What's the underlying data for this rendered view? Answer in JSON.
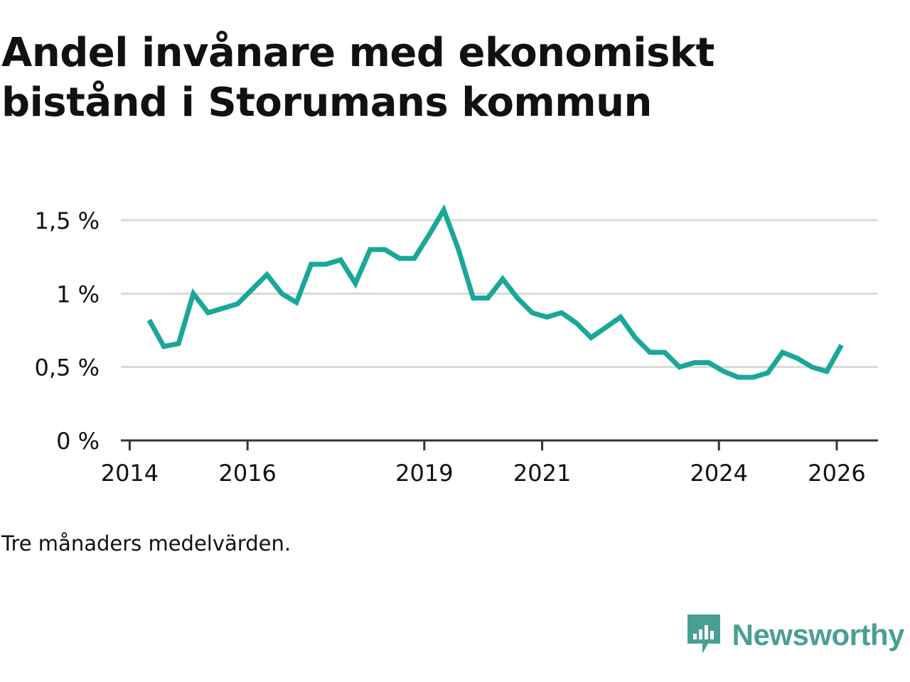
{
  "title": "Andel invånare med ekonomiskt bistånd i Storumans kommun",
  "note": "Tre månaders medelvärden.",
  "brand": {
    "name": "Newsworthy"
  },
  "colors": {
    "line": "#1aa79a",
    "grid": "#d9d9d9",
    "axis": "#333333",
    "text": "#111111",
    "brand": "#4a9f94"
  },
  "chart_data": {
    "type": "line",
    "title": "Andel invånare med ekonomiskt bistånd i Storumans kommun",
    "xlabel": "",
    "ylabel": "",
    "xlim": [
      2013.85,
      2026.7
    ],
    "ylim": [
      0,
      1.5
    ],
    "x_ticks": [
      2014,
      2016,
      2019,
      2021,
      2024,
      2026
    ],
    "x_tick_labels": [
      "2014",
      "2016",
      "2019",
      "2021",
      "2024",
      "2026"
    ],
    "y_ticks": [
      0,
      0.5,
      1,
      1.5
    ],
    "y_tick_labels": [
      "0 %",
      "0,5 %",
      "1 %",
      "1,5 %"
    ],
    "grid": true,
    "series": [
      {
        "name": "Andel invånare med ekonomiskt bistånd",
        "x": [
          2014.33,
          2014.58,
          2014.83,
          2015.08,
          2015.33,
          2015.58,
          2015.83,
          2016.08,
          2016.33,
          2016.58,
          2016.83,
          2017.08,
          2017.33,
          2017.58,
          2017.83,
          2018.08,
          2018.33,
          2018.58,
          2018.83,
          2019.08,
          2019.33,
          2019.58,
          2019.83,
          2020.08,
          2020.33,
          2020.58,
          2020.83,
          2021.08,
          2021.33,
          2021.58,
          2021.83,
          2022.08,
          2022.33,
          2022.58,
          2022.83,
          2023.08,
          2023.33,
          2023.58,
          2023.83,
          2024.08,
          2024.33,
          2024.58,
          2024.83,
          2025.08,
          2025.33,
          2025.58,
          2025.83,
          2026.08
        ],
        "values": [
          0.82,
          0.64,
          0.66,
          1.0,
          0.87,
          0.9,
          0.93,
          1.03,
          1.13,
          1.0,
          0.94,
          1.2,
          1.2,
          1.23,
          1.07,
          1.3,
          1.3,
          1.24,
          1.24,
          1.4,
          1.57,
          1.3,
          0.97,
          0.97,
          1.1,
          0.97,
          0.87,
          0.84,
          0.87,
          0.8,
          0.7,
          0.77,
          0.84,
          0.7,
          0.6,
          0.6,
          0.5,
          0.53,
          0.53,
          0.47,
          0.43,
          0.43,
          0.46,
          0.6,
          0.56,
          0.5,
          0.47,
          0.65
        ]
      }
    ]
  }
}
